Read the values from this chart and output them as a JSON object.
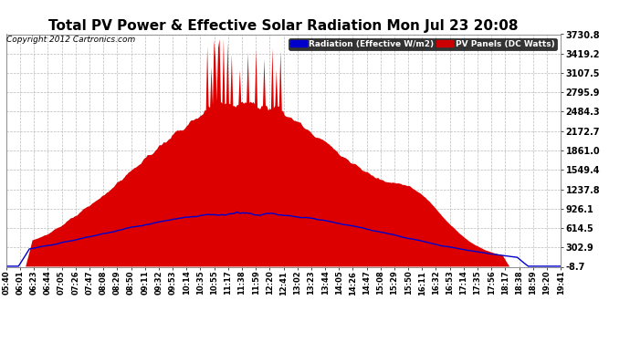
{
  "title": "Total PV Power & Effective Solar Radiation Mon Jul 23 20:08",
  "copyright": "Copyright 2012 Cartronics.com",
  "legend_radiation": "Radiation (Effective W/m2)",
  "legend_pv": "PV Panels (DC Watts)",
  "legend_radiation_bg": "#0000cc",
  "legend_pv_bg": "#cc0000",
  "y_min": -8.7,
  "y_max": 3730.8,
  "y_ticks": [
    3730.8,
    3419.2,
    3107.5,
    2795.9,
    2484.3,
    2172.7,
    1861.0,
    1549.4,
    1237.8,
    926.1,
    614.5,
    302.9,
    -8.7
  ],
  "pv_color": "#dd0000",
  "radiation_color": "#0000cc",
  "background_color": "#ffffff",
  "plot_bg_color": "#ffffff",
  "grid_color": "#aaaaaa",
  "title_color": "#000000",
  "tick_color": "#000000",
  "x_tick_labels": [
    "05:40",
    "06:01",
    "06:23",
    "06:44",
    "07:05",
    "07:26",
    "07:47",
    "08:08",
    "08:29",
    "08:50",
    "09:11",
    "09:32",
    "09:53",
    "10:14",
    "10:35",
    "10:55",
    "11:17",
    "11:38",
    "11:59",
    "12:20",
    "12:41",
    "13:02",
    "13:23",
    "13:44",
    "14:05",
    "14:26",
    "14:47",
    "15:08",
    "15:29",
    "15:50",
    "16:11",
    "16:32",
    "16:53",
    "17:14",
    "17:35",
    "17:56",
    "18:17",
    "18:38",
    "18:59",
    "19:20",
    "19:41"
  ],
  "title_fontsize": 11,
  "tick_fontsize": 6,
  "copyright_fontsize": 6.5,
  "ytick_fontsize": 7
}
